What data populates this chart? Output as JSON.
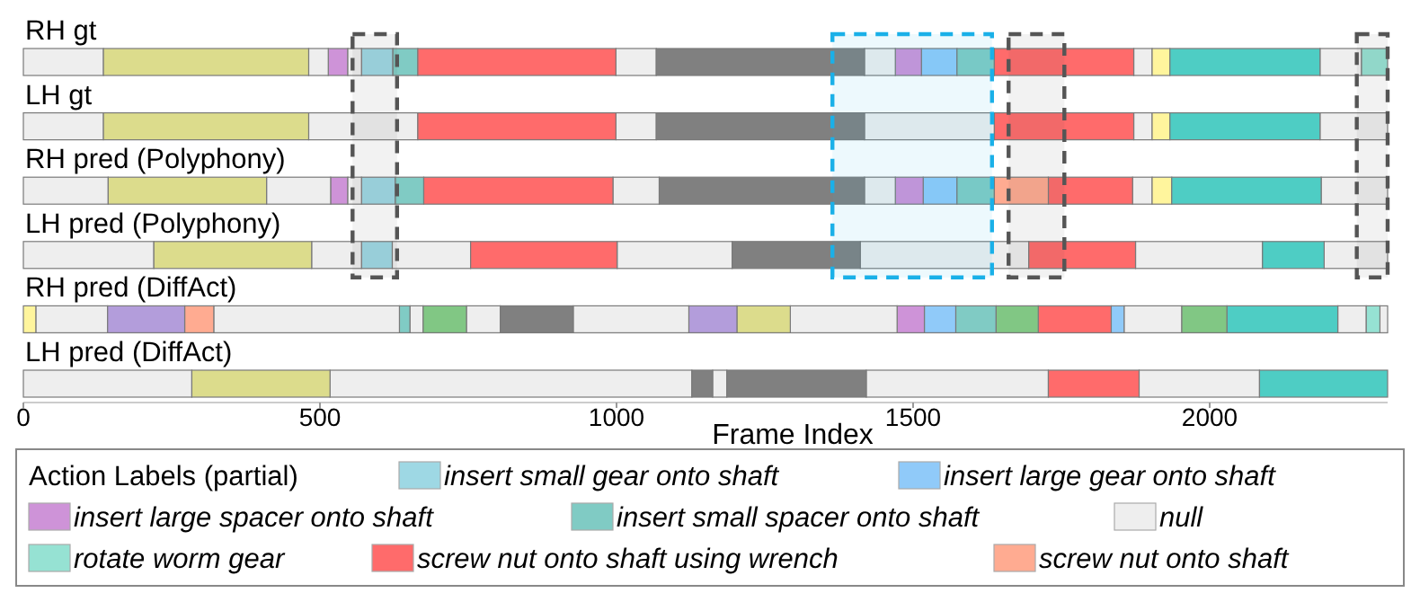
{
  "chart_data": {
    "type": "bar",
    "orientation": "horizontal",
    "xlabel": "Frame Index",
    "legend_title": "Action Labels (partial)",
    "legend": "bottom",
    "categories": [
      "RH gt",
      "LH gt",
      "RH pred (Polyphony)",
      "LH pred (Polyphony)",
      "RH pred (DiffAct)",
      "LH pred (DiffAct)"
    ],
    "xlim": [
      0,
      2300
    ],
    "xticks": [
      0,
      500,
      1000,
      1500,
      2000
    ],
    "series": [
      {
        "name": "insert small gear onto shaft",
        "color": "#9ed8e4",
        "base": [
          570,
          null,
          570,
          570,
          null,
          null
        ],
        "values": [
          53,
          null,
          57,
          52,
          null,
          null
        ]
      },
      {
        "name": "insert large gear onto shaft",
        "color": "#90caf9",
        "base": [
          1514,
          null,
          1517,
          null,
          1519,
          null
        ],
        "values": [
          60,
          null,
          57,
          null,
          53,
          null
        ]
      },
      {
        "color": "#90caf9",
        "base": [
          null,
          null,
          null,
          null,
          1834,
          null
        ],
        "values": [
          null,
          null,
          null,
          null,
          22,
          null
        ]
      },
      {
        "name": "insert large spacer onto shaft",
        "color": "#ce93d8",
        "base": [
          514,
          null,
          518,
          null,
          1473,
          null
        ],
        "values": [
          33,
          null,
          29,
          null,
          46,
          null
        ]
      },
      {
        "color": "#ce93d8",
        "base": [
          1470,
          null,
          1470,
          null,
          null,
          null
        ],
        "values": [
          44,
          null,
          47,
          null,
          null,
          null
        ]
      },
      {
        "name": "insert small spacer onto shaft",
        "color": "#80cbc4",
        "base": [
          623,
          null,
          627,
          null,
          634,
          null
        ],
        "values": [
          42,
          null,
          48,
          null,
          18,
          null
        ]
      },
      {
        "color": "#80cbc4",
        "base": [
          1574,
          null,
          1574,
          null,
          1572,
          null
        ],
        "values": [
          63,
          null,
          63,
          null,
          68,
          null
        ]
      },
      {
        "name": "null",
        "color": "#eeeeee",
        "base": [
          0,
          0,
          0,
          0,
          21,
          0
        ],
        "values": [
          135,
          135,
          143,
          220,
          121,
          284
        ]
      },
      {
        "color": "#eeeeee",
        "base": [
          481,
          481,
          410,
          486,
          321,
          517
        ],
        "values": [
          33,
          184,
          108,
          84,
          313,
          610
        ]
      },
      {
        "color": "#eeeeee",
        "base": [
          547,
          999,
          547,
          622,
          652,
          1162
        ],
        "values": [
          23,
          68,
          23,
          132,
          22,
          24
        ]
      },
      {
        "color": "#eeeeee",
        "base": [
          999,
          1418,
          994,
          1001,
          747,
          1421
        ],
        "values": [
          68,
          219,
          78,
          194,
          57,
          307
        ]
      },
      {
        "color": "#eeeeee",
        "base": [
          1418,
          1872,
          1418,
          1411,
          927,
          1881
        ],
        "values": [
          52,
          31,
          52,
          284,
          195,
          203
        ]
      },
      {
        "color": "#eeeeee",
        "base": [
          1872,
          2186,
          1870,
          1875,
          1293,
          null
        ],
        "values": [
          31,
          114,
          33,
          214,
          180,
          null
        ]
      },
      {
        "color": "#eeeeee",
        "base": [
          2186,
          null,
          2188,
          2193,
          1856,
          null
        ],
        "values": [
          70,
          null,
          112,
          107,
          97,
          null
        ]
      },
      {
        "color": "#eeeeee",
        "base": [
          null,
          null,
          null,
          null,
          2216,
          null
        ],
        "values": [
          null,
          null,
          null,
          null,
          48,
          null
        ]
      },
      {
        "color": "#eeeeee",
        "base": [
          null,
          null,
          null,
          null,
          2287,
          null
        ],
        "values": [
          null,
          null,
          null,
          null,
          13,
          null
        ]
      },
      {
        "name": "rotate worm gear",
        "color": "#96e2d3",
        "base": [
          2256,
          null,
          null,
          null,
          2264,
          null
        ],
        "values": [
          44,
          null,
          null,
          null,
          23,
          null
        ]
      },
      {
        "name": "screw nut onto shaft using wrench",
        "color": "#ff6b6b",
        "base": [
          665,
          665,
          675,
          754,
          1711,
          1728
        ],
        "values": [
          334,
          334,
          319,
          247,
          123,
          153
        ]
      },
      {
        "color": "#ff6b6b",
        "base": [
          1637,
          1637,
          1728,
          1695,
          null,
          null
        ],
        "values": [
          235,
          235,
          142,
          180,
          null,
          null
        ]
      },
      {
        "name": "screw nut onto shaft",
        "color": "#ffab91",
        "base": [
          null,
          null,
          1637,
          null,
          272,
          null
        ],
        "values": [
          null,
          null,
          91,
          null,
          49,
          null
        ]
      },
      {
        "color": "#dcdc8c",
        "base": [
          135,
          135,
          143,
          220,
          1203,
          284
        ],
        "values": [
          346,
          346,
          267,
          266,
          90,
          233
        ]
      },
      {
        "color": "#808080",
        "base": [
          1067,
          1067,
          1072,
          1195,
          804,
          1127
        ],
        "values": [
          351,
          351,
          346,
          216,
          123,
          35
        ]
      },
      {
        "color": "#808080",
        "base": [
          null,
          null,
          null,
          null,
          null,
          1186
        ],
        "values": [
          null,
          null,
          null,
          null,
          null,
          235
        ]
      },
      {
        "color": "#fff59d",
        "base": [
          1903,
          1903,
          1903,
          null,
          0,
          null
        ],
        "values": [
          30,
          30,
          33,
          null,
          21,
          null
        ]
      },
      {
        "color": "#4ecdc4",
        "base": [
          1933,
          1933,
          1936,
          2089,
          2029,
          2084
        ],
        "values": [
          253,
          253,
          252,
          104,
          187,
          216
        ]
      },
      {
        "color": "#b39ddb",
        "base": [
          null,
          null,
          null,
          null,
          142,
          null
        ],
        "values": [
          null,
          null,
          null,
          null,
          130,
          null
        ]
      },
      {
        "color": "#b39ddb",
        "base": [
          null,
          null,
          null,
          null,
          1122,
          null
        ],
        "values": [
          null,
          null,
          null,
          null,
          81,
          null
        ]
      },
      {
        "color": "#81c784",
        "base": [
          null,
          null,
          null,
          null,
          674,
          null
        ],
        "values": [
          null,
          null,
          null,
          null,
          73,
          null
        ]
      },
      {
        "color": "#81c784",
        "base": [
          null,
          null,
          null,
          null,
          1640,
          null
        ],
        "values": [
          null,
          null,
          null,
          null,
          71,
          null
        ]
      },
      {
        "color": "#81c784",
        "base": [
          null,
          null,
          null,
          null,
          1953,
          null
        ],
        "values": [
          null,
          null,
          null,
          null,
          76,
          null
        ]
      }
    ],
    "bands": [
      {
        "axis": "x",
        "from": 555,
        "to": 630,
        "color": "#555555"
      },
      {
        "axis": "x",
        "from": 1364,
        "to": 1633,
        "color": "#1ab0e8"
      },
      {
        "axis": "x",
        "from": 1661,
        "to": 1755,
        "color": "#555555"
      },
      {
        "axis": "x",
        "from": 2248,
        "to": 2300,
        "color": "#555555"
      }
    ]
  }
}
